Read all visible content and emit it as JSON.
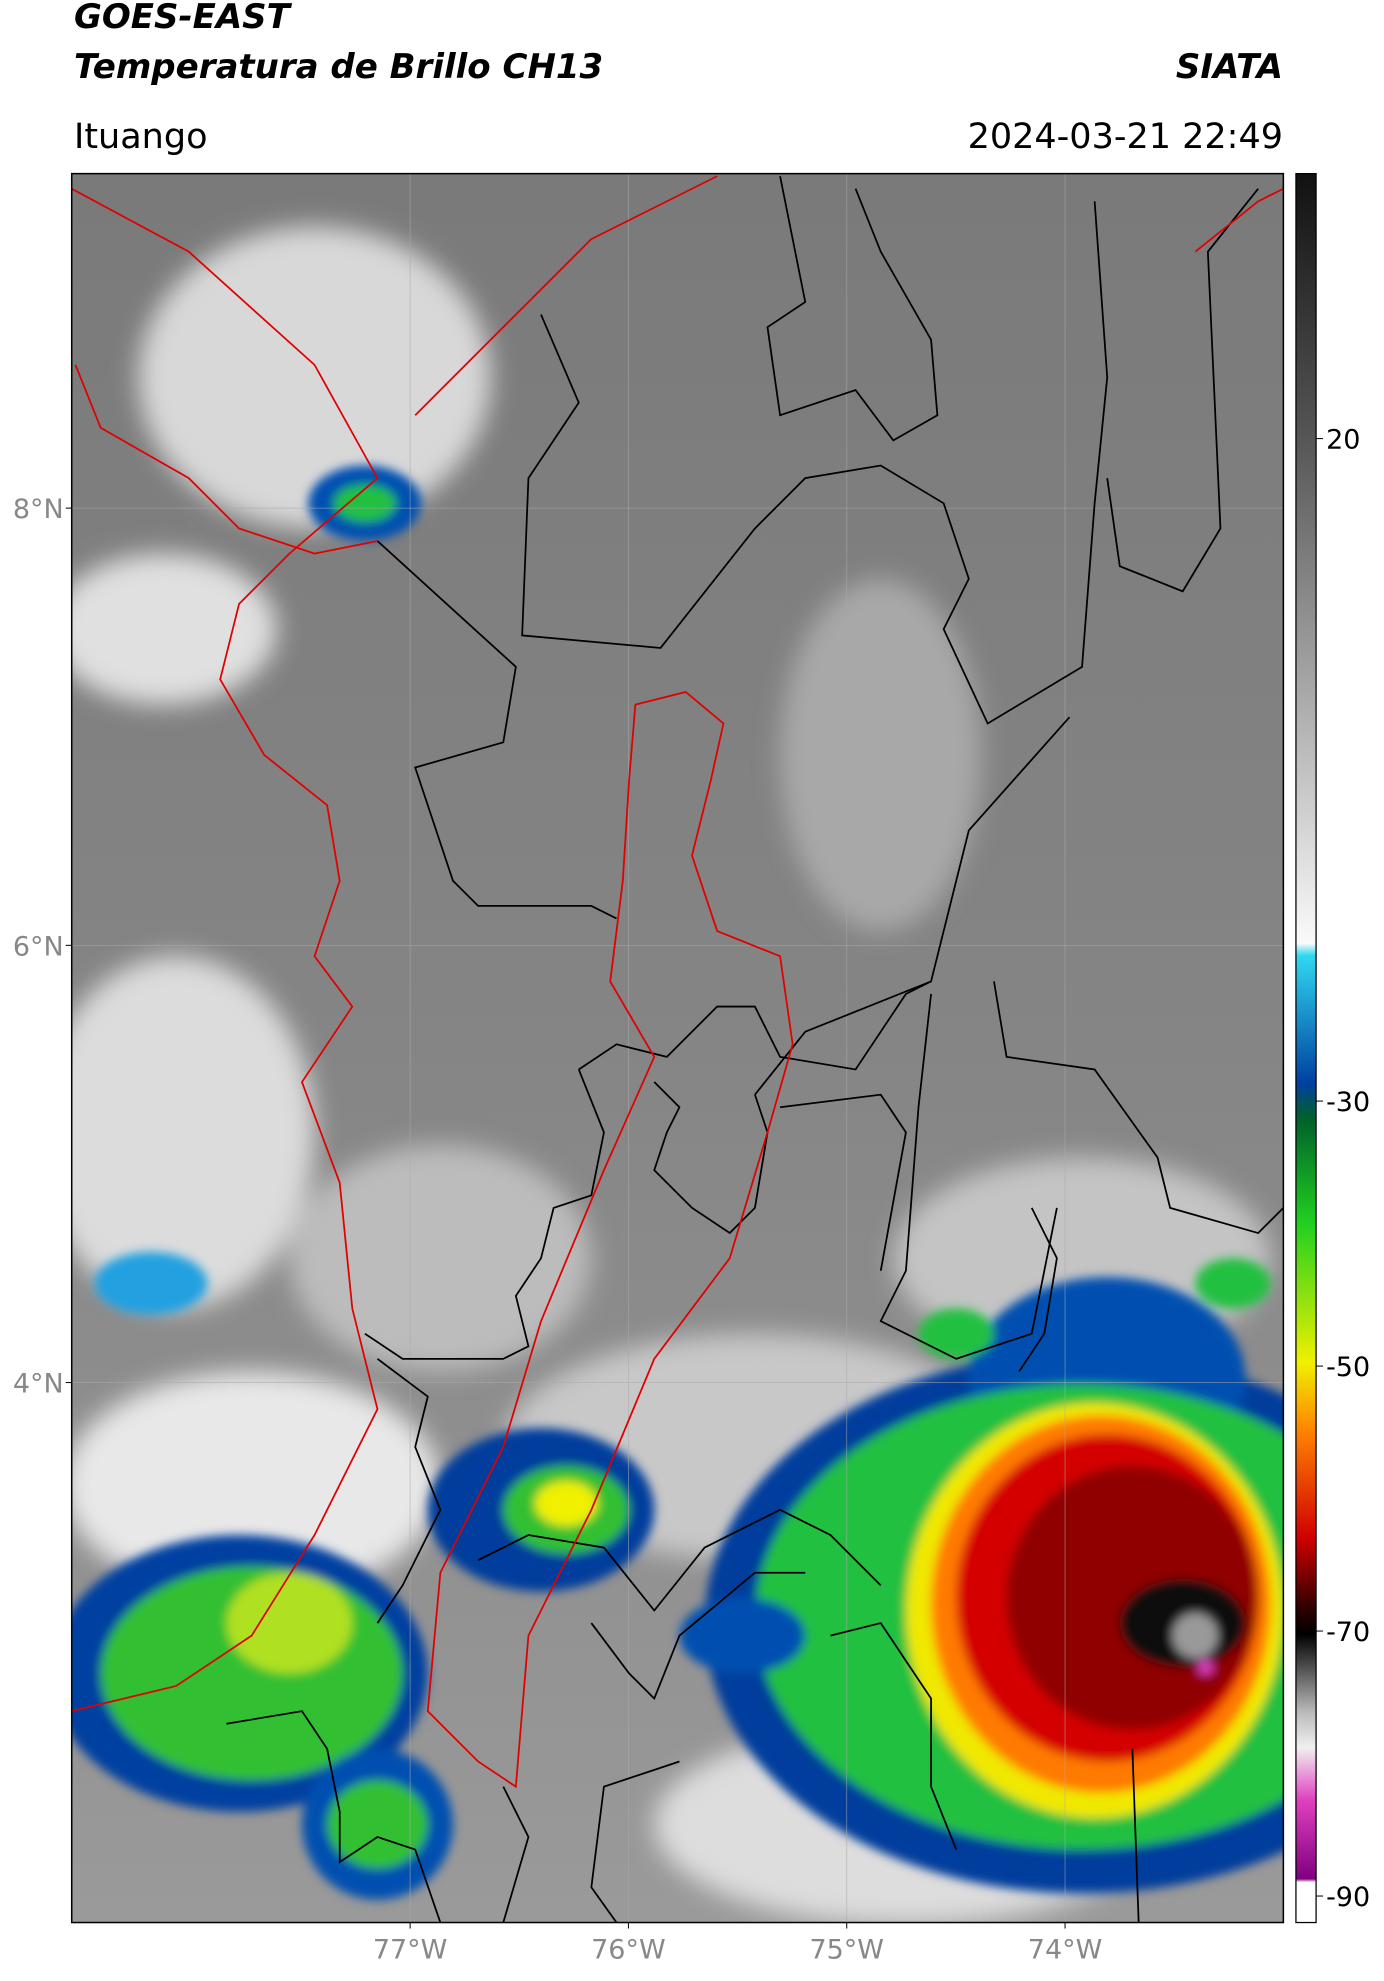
{
  "map": {
    "title": "GOES-EAST",
    "subtitle": "Temperatura de Brillo CH13",
    "agency": "SIATA",
    "location": "Ituango",
    "datetime": "2024-03-21 22:49",
    "xlim": [
      -78.55,
      -73.0
    ],
    "ylim": [
      1.53,
      9.53
    ],
    "xticks": [
      {
        "value": -77,
        "label": "77°W"
      },
      {
        "value": -76,
        "label": "76°W"
      },
      {
        "value": -75,
        "label": "75°W"
      },
      {
        "value": -74,
        "label": "74°W"
      }
    ],
    "yticks": [
      {
        "value": 8,
        "label": "8°N"
      },
      {
        "value": 6,
        "label": "6°N"
      },
      {
        "value": 4,
        "label": "4°N"
      }
    ],
    "colorbar_lim": [
      -92,
      40
    ],
    "colorbar_ticks": [
      20,
      -30,
      -50,
      -70,
      -90
    ],
    "grid": true
  }
}
